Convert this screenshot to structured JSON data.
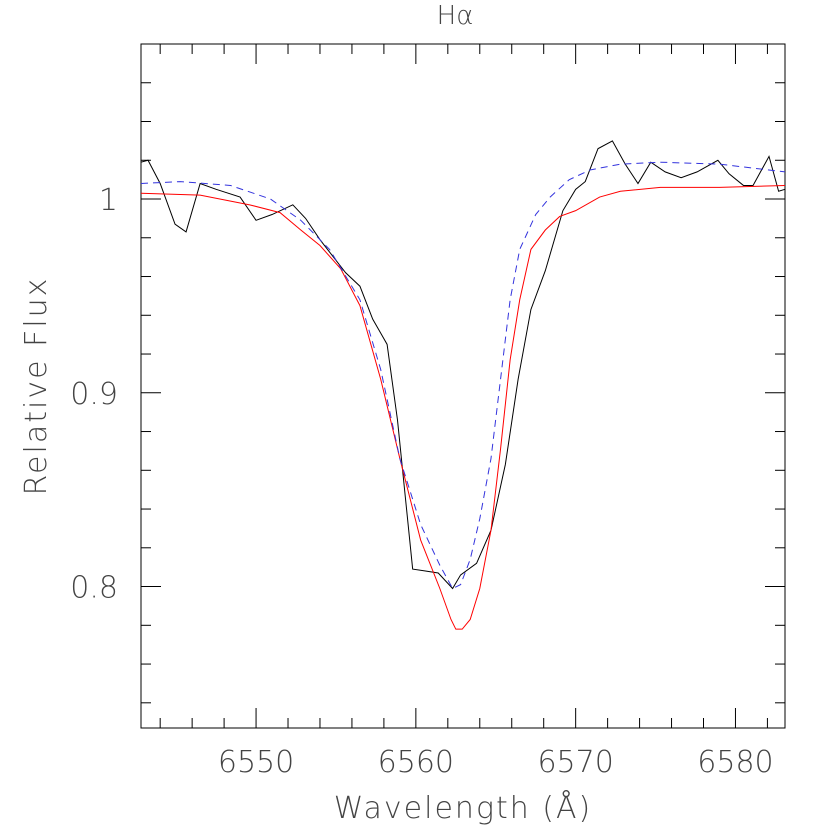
{
  "chart_data": {
    "type": "line",
    "title": "Hα",
    "xlabel": "Wavelength (Å)",
    "ylabel": "Relative Flux",
    "xlim": [
      6542.8,
      6583.1
    ],
    "ylim": [
      0.727,
      1.08
    ],
    "xticks": [
      6550,
      6560,
      6570,
      6580
    ],
    "xminorticks": [
      6544,
      6546,
      6548,
      6552,
      6554,
      6556,
      6558,
      6562,
      6564,
      6566,
      6568,
      6572,
      6574,
      6576,
      6578,
      6582
    ],
    "yticks": [
      0.8,
      0.9,
      1
    ],
    "yminorticks": [
      0.74,
      0.76,
      0.78,
      0.82,
      0.84,
      0.86,
      0.88,
      0.92,
      0.94,
      0.96,
      0.98,
      1.02,
      1.04,
      1.06
    ],
    "series": [
      {
        "color": "#000000",
        "dash": false,
        "x": [
          6542.8,
          6543.24,
          6544.0,
          6544.93,
          6545.62,
          6546.5,
          6547.5,
          6549.0,
          6550.0,
          6551.0,
          6552.3,
          6553.1,
          6554.0,
          6555.6,
          6556.5,
          6557.3,
          6558.2,
          6558.85,
          6559.8,
          6560.6,
          6561.4,
          6562.3,
          6562.8,
          6563.8,
          6564.7,
          6565.6,
          6566.4,
          6567.2,
          6568.1,
          6569.2,
          6570.0,
          6570.6,
          6571.4,
          6572.3,
          6573.1,
          6573.9,
          6574.7,
          6575.6,
          6576.6,
          6577.6,
          6578.9,
          6579.6,
          6580.5,
          6581.1,
          6582.1,
          6582.7,
          6583.1
        ],
        "values": [
          1.019,
          1.02,
          1.008,
          0.987,
          0.983,
          1.008,
          1.005,
          1.001,
          0.989,
          0.992,
          0.997,
          0.99,
          0.979,
          0.962,
          0.955,
          0.938,
          0.925,
          0.886,
          0.809,
          0.808,
          0.807,
          0.799,
          0.806,
          0.812,
          0.829,
          0.863,
          0.907,
          0.943,
          0.963,
          0.994,
          1.005,
          1.009,
          1.026,
          1.03,
          1.018,
          1.008,
          1.019,
          1.014,
          1.011,
          1.014,
          1.02,
          1.013,
          1.007,
          1.007,
          1.022,
          1.004,
          1.005
        ]
      },
      {
        "color": "#ff0000",
        "dash": false,
        "x": [
          6542.8,
          6546.5,
          6549.6,
          6551.5,
          6552.8,
          6554.0,
          6555.3,
          6556.5,
          6557.8,
          6559.0,
          6560.3,
          6561.5,
          6562.2,
          6562.5,
          6562.9,
          6563.4,
          6564.0,
          6564.7,
          6565.3,
          6565.9,
          6566.5,
          6567.2,
          6568.1,
          6569.0,
          6570.0,
          6571.5,
          6572.8,
          6575.3,
          6579.0,
          6583.1
        ],
        "values": [
          1.003,
          1.002,
          0.997,
          0.993,
          0.984,
          0.976,
          0.964,
          0.945,
          0.907,
          0.866,
          0.824,
          0.799,
          0.783,
          0.778,
          0.778,
          0.783,
          0.799,
          0.829,
          0.871,
          0.917,
          0.948,
          0.974,
          0.984,
          0.991,
          0.994,
          1.001,
          1.004,
          1.006,
          1.006,
          1.007
        ]
      },
      {
        "color": "#3333dd",
        "dash": true,
        "x": [
          6542.8,
          6545.25,
          6548.4,
          6550.9,
          6552.8,
          6554.6,
          6556.5,
          6557.8,
          6559.0,
          6560.3,
          6561.5,
          6562.3,
          6562.8,
          6563.4,
          6564.0,
          6564.7,
          6565.3,
          6565.9,
          6566.5,
          6567.5,
          6568.4,
          6569.6,
          6570.9,
          6572.8,
          6575.3,
          6579.0,
          6583.1
        ],
        "values": [
          1.008,
          1.009,
          1.007,
          1.0,
          0.989,
          0.974,
          0.948,
          0.912,
          0.866,
          0.832,
          0.811,
          0.799,
          0.801,
          0.814,
          0.835,
          0.866,
          0.907,
          0.948,
          0.974,
          0.992,
          1.001,
          1.01,
          1.015,
          1.018,
          1.019,
          1.018,
          1.014
        ]
      }
    ]
  }
}
